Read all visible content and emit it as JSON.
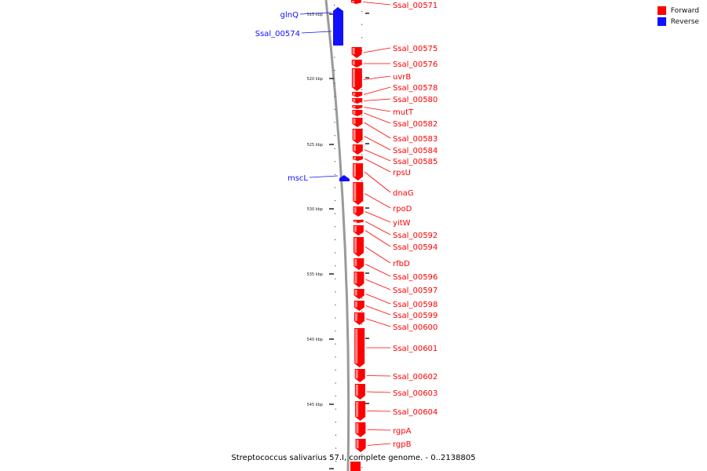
{
  "legend": {
    "forward_label": "Forward",
    "reverse_label": "Reverse",
    "forward_color": "#ff0000",
    "reverse_color": "#1010ff"
  },
  "caption": "Streptococcus salivarius 57.I, complete genome. - 0..2138805",
  "ticks": [
    "515 kbp",
    "520 kbp",
    "525 kbp",
    "530 kbp",
    "535 kbp",
    "540 kbp",
    "545 kbp"
  ],
  "reverse_genes": [
    "glnQ",
    "Ssal_00574",
    "mscL"
  ],
  "forward_genes": [
    "Ssal_00571",
    "Ssal_00575",
    "Ssal_00576",
    "uvrB",
    "Ssal_00578",
    "Ssal_00580",
    "mutT",
    "Ssal_00582",
    "Ssal_00583",
    "Ssal_00584",
    "Ssal_00585",
    "rpsU",
    "dnaG",
    "rpoD",
    "yitW",
    "Ssal_00592",
    "Ssal_00594",
    "rfbD",
    "Ssal_00596",
    "Ssal_00597",
    "Ssal_00598",
    "Ssal_00599",
    "Ssal_00600",
    "Ssal_00601",
    "Ssal_00602",
    "Ssal_00603",
    "Ssal_00604",
    "rgpA",
    "rgpB"
  ]
}
